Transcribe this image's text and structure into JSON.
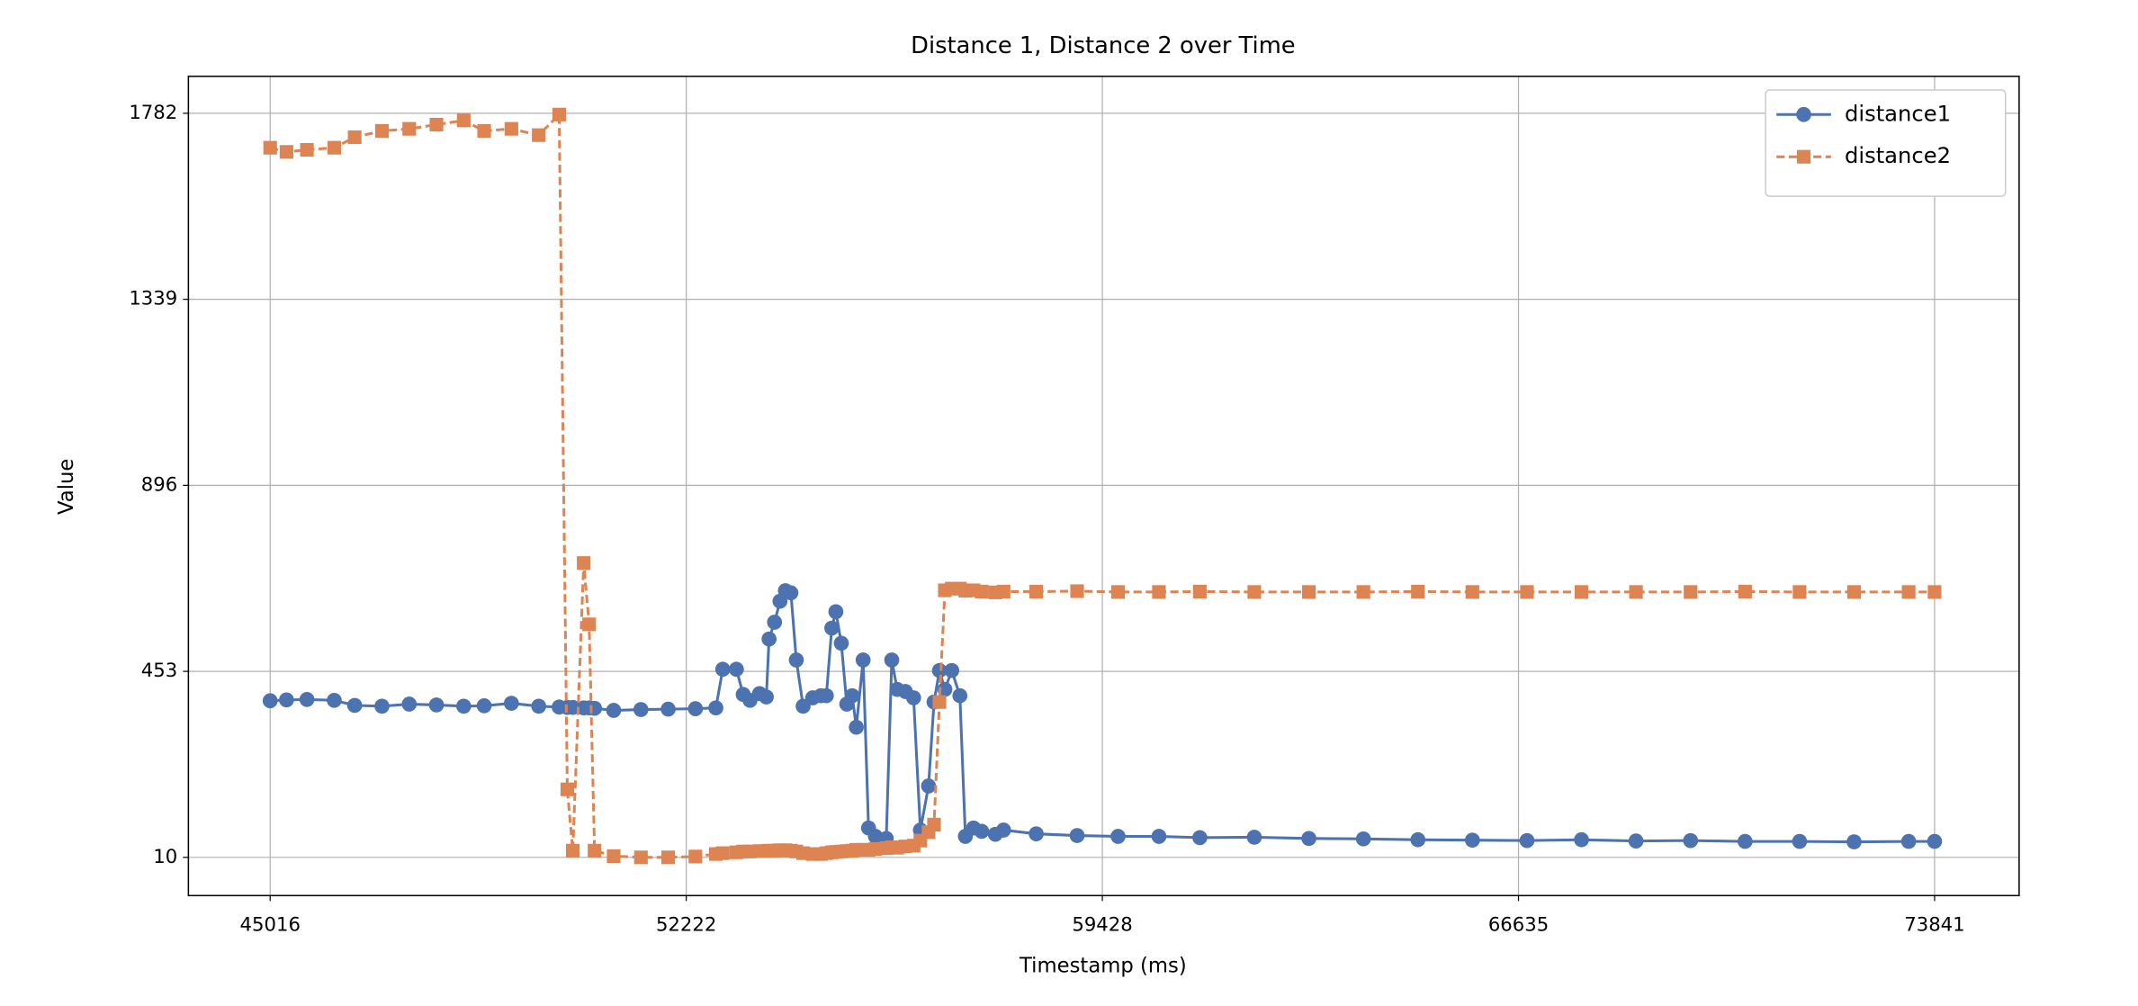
{
  "chart_data": {
    "type": "line",
    "title": "Distance 1, Distance 2 over Time",
    "x_label": "Timestamp (ms)",
    "y_label": "Value",
    "x": [
      45016,
      45299,
      45653,
      46126,
      46480,
      46952,
      47424,
      47896,
      48368,
      48722,
      49194,
      49667,
      50021,
      50162,
      50257,
      50446,
      50540,
      50634,
      50965,
      51437,
      51909,
      52381,
      52735,
      52854,
      53090,
      53208,
      53326,
      53491,
      53609,
      53656,
      53751,
      53845,
      53939,
      54034,
      54128,
      54246,
      54412,
      54553,
      54648,
      54742,
      54813,
      54907,
      55002,
      55096,
      55167,
      55285,
      55379,
      55498,
      55686,
      55781,
      55875,
      56017,
      56159,
      56277,
      56418,
      56513,
      56607,
      56701,
      56820,
      56961,
      57056,
      57197,
      57339,
      57575,
      57717,
      58283,
      58991,
      59700,
      60408,
      61116,
      62060,
      63005,
      63949,
      64893,
      65837,
      66782,
      67726,
      68670,
      69615,
      70559,
      71503,
      72447,
      73392,
      73841
    ],
    "series": [
      {
        "name": "distance1",
        "color": "#4c72b0",
        "marker": "circle",
        "linestyle": "solid",
        "values": [
          383,
          385,
          386,
          384,
          372,
          370,
          375,
          373,
          370,
          371,
          377,
          370,
          368,
          367,
          367,
          366,
          366,
          365,
          360,
          362,
          363,
          364,
          366,
          458,
          458,
          398,
          384,
          400,
          392,
          530,
          570,
          620,
          645,
          640,
          480,
          370,
          390,
          395,
          395,
          556,
          595,
          520,
          375,
          395,
          320,
          480,
          80,
          60,
          55,
          480,
          410,
          405,
          390,
          75,
          180,
          380,
          455,
          410,
          455,
          395,
          60,
          80,
          72,
          65,
          75,
          66,
          62,
          60,
          60,
          57,
          58,
          55,
          54,
          52,
          51,
          50,
          52,
          49,
          50,
          48,
          48,
          47,
          48,
          48
        ]
      },
      {
        "name": "distance2",
        "color": "#dd8452",
        "marker": "square",
        "linestyle": "dashed",
        "values": [
          1700,
          1690,
          1695,
          1700,
          1725,
          1740,
          1745,
          1755,
          1765,
          1740,
          1745,
          1730,
          1779,
          172,
          26,
          711,
          565,
          26,
          13,
          10,
          10,
          12,
          18,
          20,
          22,
          24,
          24,
          25,
          25,
          26,
          26,
          27,
          27,
          26,
          24,
          20,
          18,
          18,
          20,
          22,
          23,
          24,
          25,
          26,
          28,
          28,
          28,
          30,
          32,
          34,
          33,
          36,
          38,
          50,
          70,
          88,
          380,
          646,
          650,
          650,
          645,
          646,
          643,
          641,
          643,
          643,
          644,
          642,
          642,
          643,
          642,
          642,
          642,
          643,
          642,
          642,
          642,
          642,
          642,
          643,
          642,
          642,
          642,
          642
        ]
      }
    ],
    "xlim": [
      43600,
      75305
    ],
    "ylim": [
      -81,
      1870
    ],
    "xticks": [
      45016,
      52222,
      59428,
      66635,
      73841
    ],
    "yticks": [
      10,
      453,
      896,
      1339,
      1782
    ],
    "grid": true,
    "legend": "upper right"
  }
}
